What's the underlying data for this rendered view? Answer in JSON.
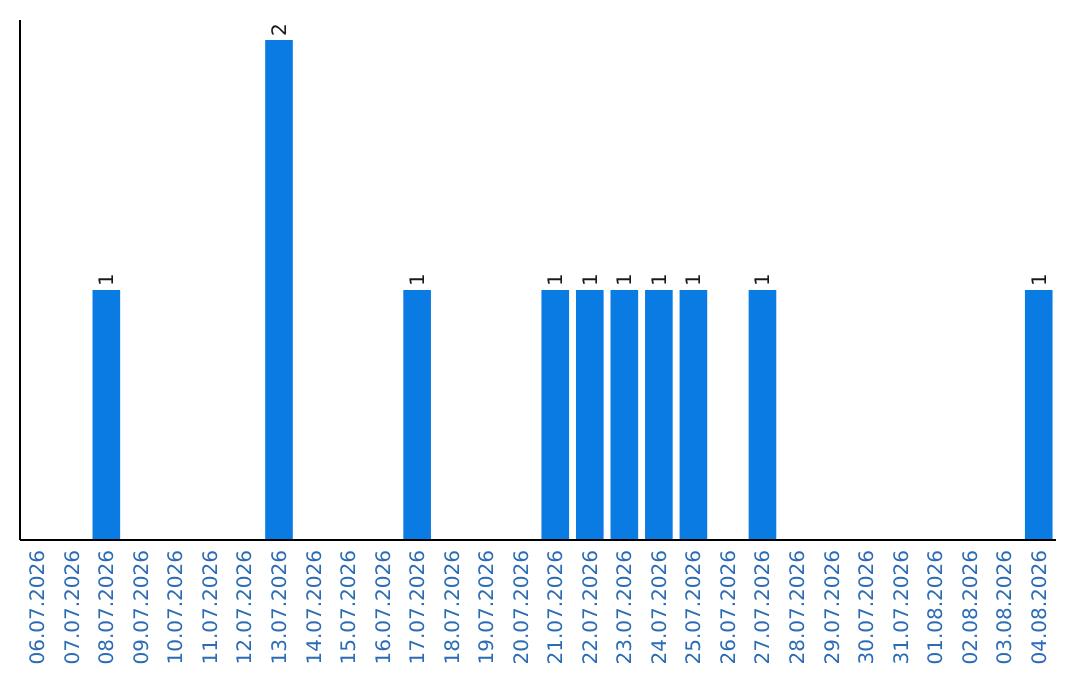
{
  "chart_data": {
    "type": "bar",
    "categories": [
      "06.07.2026",
      "07.07.2026",
      "08.07.2026",
      "09.07.2026",
      "10.07.2026",
      "11.07.2026",
      "12.07.2026",
      "13.07.2026",
      "14.07.2026",
      "15.07.2026",
      "16.07.2026",
      "17.07.2026",
      "18.07.2026",
      "19.07.2026",
      "20.07.2026",
      "21.07.2026",
      "22.07.2026",
      "23.07.2026",
      "24.07.2026",
      "25.07.2026",
      "26.07.2026",
      "27.07.2026",
      "28.07.2026",
      "29.07.2026",
      "30.07.2026",
      "31.07.2026",
      "01.08.2026",
      "02.08.2026",
      "03.08.2026",
      "04.08.2026"
    ],
    "values": [
      0,
      0,
      1,
      0,
      0,
      0,
      0,
      2,
      0,
      0,
      0,
      1,
      0,
      0,
      0,
      1,
      1,
      1,
      1,
      1,
      0,
      1,
      0,
      0,
      0,
      0,
      0,
      0,
      0,
      1
    ],
    "value_labels": [
      null,
      null,
      "1",
      null,
      null,
      null,
      null,
      "2",
      null,
      null,
      null,
      "1",
      null,
      null,
      null,
      "1",
      "1",
      "1",
      "1",
      "1",
      null,
      "1",
      null,
      null,
      null,
      null,
      null,
      null,
      null,
      "1"
    ],
    "color": "#0a7be3"
  }
}
